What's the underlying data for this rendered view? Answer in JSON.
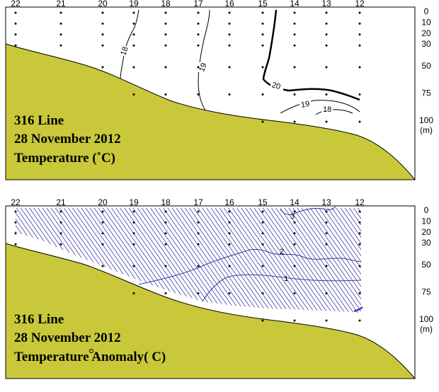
{
  "colors": {
    "seabed": "#c8c83a",
    "anomaly_hatch": "#3a3aa8",
    "contour": "#000000",
    "background": "#ffffff"
  },
  "chart_data": [
    {
      "type": "contour",
      "panel": "temperature",
      "title_lines": [
        "316 Line",
        "28 November 2012",
        "Temperature (˚C)"
      ],
      "stations": [
        "22",
        "21",
        "20",
        "19",
        "18",
        "17",
        "16",
        "15",
        "14",
        "13",
        "12"
      ],
      "depth_ticks": [
        "0",
        "10",
        "20",
        "30",
        "50",
        "75",
        "100",
        "(m)"
      ],
      "depth_values": [
        0,
        10,
        20,
        30,
        50,
        75,
        100
      ],
      "sample_bottom_depth_m": [
        30,
        30,
        50,
        75,
        75,
        75,
        75,
        100,
        100,
        100,
        100
      ],
      "contours": [
        {
          "label": "18",
          "value": 18
        },
        {
          "label": "19",
          "value": 19
        },
        {
          "label": "20",
          "value": 20
        },
        {
          "label": "19",
          "value": 19
        },
        {
          "label": "18",
          "value": 18
        }
      ]
    },
    {
      "type": "contour",
      "panel": "temperature-anomaly",
      "title_lines": [
        "316 Line",
        "28 November 2012",
        "Temperature Anomaly( C)"
      ],
      "stations": [
        "22",
        "21",
        "20",
        "19",
        "18",
        "17",
        "16",
        "15",
        "14",
        "13",
        "12"
      ],
      "depth_ticks": [
        "0",
        "10",
        "20",
        "30",
        "50",
        "75",
        "100",
        "(m)"
      ],
      "depth_values": [
        0,
        10,
        20,
        30,
        50,
        75,
        100
      ],
      "sample_bottom_depth_m": [
        30,
        30,
        50,
        75,
        75,
        75,
        75,
        100,
        100,
        100,
        100
      ],
      "contours": [
        {
          "label": "3",
          "value": 3
        },
        {
          "label": "2",
          "value": 2
        },
        {
          "label": "1",
          "value": 1
        }
      ]
    }
  ]
}
